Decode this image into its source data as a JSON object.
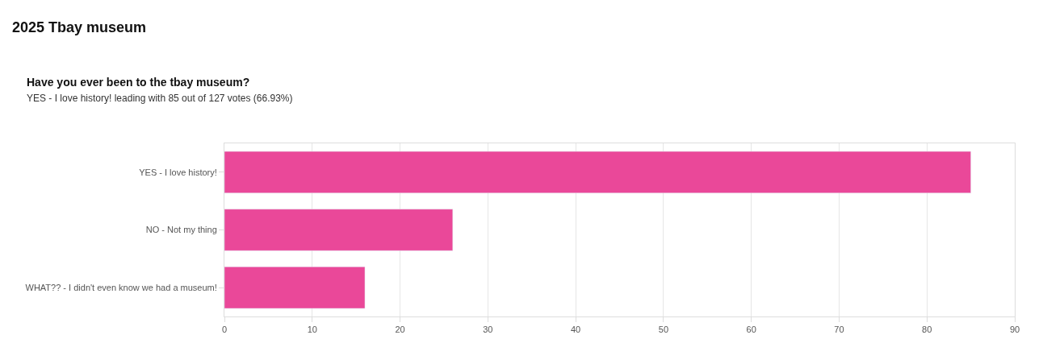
{
  "chart_data": {
    "type": "bar",
    "orientation": "horizontal",
    "title": "2025 Tbay museum",
    "subtitle": "Have you ever been to the tbay museum?",
    "annotations": [
      "YES - I love history! leading with 85 out of 127 votes (66.93%)"
    ],
    "categories": [
      "YES - I love history!",
      "NO - Not my thing",
      "WHAT?? - I didn't even know we had a museum!"
    ],
    "values": [
      85,
      26,
      16
    ],
    "color": "#ea4899",
    "xlim": [
      0,
      90
    ],
    "xticks": [
      0,
      10,
      20,
      30,
      40,
      50,
      60,
      70,
      80,
      90
    ],
    "grid": "x"
  }
}
